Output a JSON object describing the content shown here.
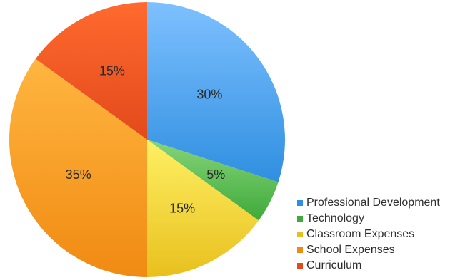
{
  "chart_data": {
    "type": "pie",
    "start_angle_deg": 0,
    "direction": "clockwise",
    "legend_position": "bottom-right",
    "slices": [
      {
        "label": "Professional Development",
        "value": 30,
        "value_label": "30%",
        "color": "#2f8fe0",
        "color_light": "#7ec0ff"
      },
      {
        "label": "Technology",
        "value": 5,
        "value_label": "5%",
        "color": "#3faa3a",
        "color_light": "#86d47a"
      },
      {
        "label": "Classroom Expenses",
        "value": 15,
        "value_label": "15%",
        "color": "#e8c01e",
        "color_light": "#fff064"
      },
      {
        "label": "School Expenses",
        "value": 35,
        "value_label": "35%",
        "color": "#f08a12",
        "color_light": "#ffb640"
      },
      {
        "label": "Curriculum",
        "value": 15,
        "value_label": "15%",
        "color": "#e24a1b",
        "color_light": "#ff6a2e"
      }
    ]
  }
}
